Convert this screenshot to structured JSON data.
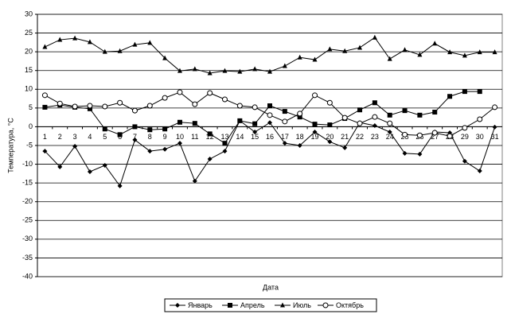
{
  "chart_data": {
    "type": "line",
    "x_label": "Дата",
    "y_label": "Температура, °С",
    "categories": [
      "1",
      "2",
      "3",
      "4",
      "5",
      "6",
      "7",
      "8",
      "9",
      "10",
      "11",
      "12",
      "13",
      "14",
      "15",
      "16",
      "17",
      "18",
      "19",
      "20",
      "21",
      "22",
      "23",
      "24",
      "25",
      "26",
      "27",
      "28",
      "29",
      "30",
      "31"
    ],
    "series": [
      {
        "name": "Январь",
        "color": "#000000",
        "marker": "diamond",
        "values": [
          -6.5,
          -10.7,
          -5.2,
          -12,
          -10.3,
          -15.8,
          -3.5,
          -6.5,
          -6,
          -4.4,
          -14.5,
          -8.6,
          -6.5,
          1.6,
          -1.4,
          1.1,
          -4.4,
          -5,
          -1.4,
          -4,
          -5.6,
          1.1,
          0.3,
          -1.4,
          -7.1,
          -7.3,
          -1.4,
          -1.6,
          -9.2,
          -11.8,
          -0.1
        ]
      },
      {
        "name": "Апрель",
        "color": "#000000",
        "marker": "square",
        "values": [
          5.2,
          5.8,
          5.2,
          4.8,
          -0.6,
          -2.1,
          0,
          -0.8,
          -0.6,
          1.2,
          0.9,
          -1.9,
          -4.4,
          1.6,
          0.8,
          5.6,
          4.1,
          2.6,
          0.7,
          0.5,
          2.2,
          4.5,
          6.4,
          3.1,
          4.3,
          3.1,
          3.9,
          8.1,
          9.4,
          9.4,
          null
        ]
      },
      {
        "name": "Июль",
        "color": "#000000",
        "marker": "triangle",
        "values": [
          21.3,
          23.2,
          23.6,
          22.6,
          20,
          20.2,
          21.9,
          22.4,
          18.3,
          14.9,
          15.4,
          14.3,
          14.9,
          14.7,
          15.4,
          14.7,
          16.2,
          18.5,
          17.9,
          20.7,
          20.2,
          21.1,
          23.8,
          18.1,
          20.5,
          19.2,
          22.2,
          19.9,
          19,
          19.9,
          19.9
        ]
      },
      {
        "name": "Октябрь",
        "color": "#000000",
        "marker": "circle",
        "values": [
          8.4,
          6.2,
          5.4,
          5.6,
          5.4,
          6.4,
          4.3,
          5.6,
          7.7,
          9.2,
          6,
          9,
          7.3,
          5.6,
          5.2,
          3.1,
          1.4,
          3.5,
          8.4,
          6.4,
          2.4,
          0.9,
          2.6,
          0.9,
          -2.1,
          -2.3,
          -1.6,
          -2.5,
          -0.3,
          2,
          5.2
        ]
      }
    ],
    "ylim": [
      -40,
      30
    ],
    "yticks": [
      30,
      25,
      20,
      15,
      10,
      5,
      0,
      -5,
      -10,
      -15,
      -20,
      -25,
      -30,
      -35,
      -40
    ],
    "grid": true,
    "legend": "bottom"
  }
}
